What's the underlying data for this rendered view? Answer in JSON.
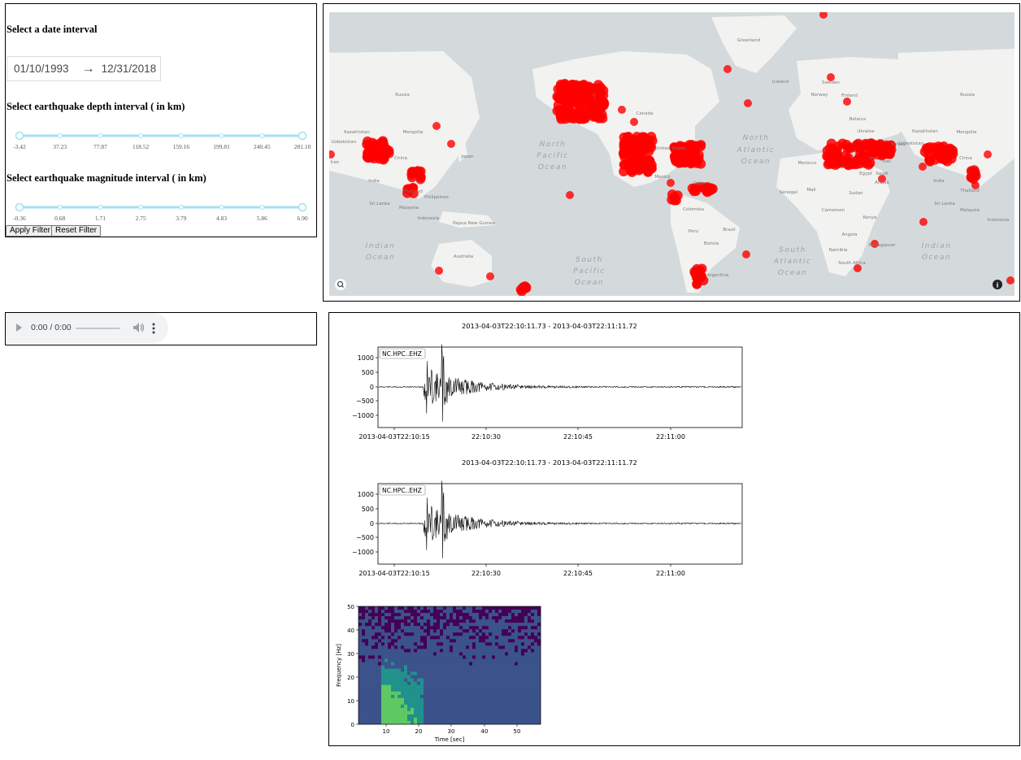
{
  "filters": {
    "date_title": "Select a date interval",
    "date_start": "01/10/1993",
    "date_arrow": "→",
    "date_end": "12/31/2018",
    "depth_title": "Select earthquake depth interval ( in km)",
    "depth_marks": [
      "-3.42",
      "37.23",
      "77.87",
      "118.52",
      "159.16",
      "199.81",
      "240.45",
      "281.10"
    ],
    "depth_range": [
      "-3.42",
      "281.10"
    ],
    "magnitude_title": "Select earthquake magnitude interval ( in km)",
    "magnitude_marks": [
      "-0.36",
      "0.68",
      "1.71",
      "2.75",
      "3.79",
      "4.83",
      "5.86",
      "6.90"
    ],
    "magnitude_range": [
      "-0.36",
      "6.90"
    ],
    "apply_label": "Apply Filter",
    "reset_label": "Reset Filter",
    "slider_color": "#a6dff0"
  },
  "map": {
    "land_color": "#f2f2f0",
    "water_color": "#d4dadc",
    "marker_color": "#ff0000",
    "labels": [
      {
        "text": "Greenland",
        "cls": "land"
      },
      {
        "text": "Russia",
        "cls": "land"
      },
      {
        "text": "Iceland",
        "cls": "land"
      },
      {
        "text": "Sweden",
        "cls": "land"
      },
      {
        "text": "Norway",
        "cls": "land"
      },
      {
        "text": "Finland",
        "cls": "land"
      },
      {
        "text": "Russia",
        "cls": "land"
      },
      {
        "text": "Canada",
        "cls": "land"
      },
      {
        "text": "Kazakhstan",
        "cls": "land"
      },
      {
        "text": "Mongolia",
        "cls": "land"
      },
      {
        "text": "Uzbekistan",
        "cls": "land"
      },
      {
        "text": "China",
        "cls": "land"
      },
      {
        "text": "Japan",
        "cls": "land"
      },
      {
        "text": "Iran",
        "cls": "land"
      },
      {
        "text": "India",
        "cls": "land"
      },
      {
        "text": "Thailand",
        "cls": "land"
      },
      {
        "text": "Philippines",
        "cls": "land"
      },
      {
        "text": "Sri Lanka",
        "cls": "land"
      },
      {
        "text": "Malaysia",
        "cls": "land"
      },
      {
        "text": "Indonesia",
        "cls": "land"
      },
      {
        "text": "Papua New Guinea",
        "cls": "land"
      },
      {
        "text": "Australia",
        "cls": "land"
      },
      {
        "text": "North",
        "cls": "ocean"
      },
      {
        "text": "Pacific",
        "cls": "ocean"
      },
      {
        "text": "Ocean",
        "cls": "ocean"
      },
      {
        "text": "United States",
        "cls": "land"
      },
      {
        "text": "Mexico",
        "cls": "land"
      },
      {
        "text": "Cuba",
        "cls": "land"
      },
      {
        "text": "Colombia",
        "cls": "land"
      },
      {
        "text": "Peru",
        "cls": "land"
      },
      {
        "text": "Brazil",
        "cls": "land"
      },
      {
        "text": "Bolivia",
        "cls": "land"
      },
      {
        "text": "Argentina",
        "cls": "land"
      },
      {
        "text": "South",
        "cls": "ocean"
      },
      {
        "text": "Pacific",
        "cls": "ocean"
      },
      {
        "text": "Ocean",
        "cls": "ocean"
      },
      {
        "text": "North",
        "cls": "ocean"
      },
      {
        "text": "Atlantic",
        "cls": "ocean"
      },
      {
        "text": "Ocean",
        "cls": "ocean"
      },
      {
        "text": "South",
        "cls": "ocean"
      },
      {
        "text": "Atlantic",
        "cls": "ocean"
      },
      {
        "text": "Ocean",
        "cls": "ocean"
      },
      {
        "text": "Belarus",
        "cls": "land"
      },
      {
        "text": "Ukraine",
        "cls": "land"
      },
      {
        "text": "Morocco",
        "cls": "land"
      },
      {
        "text": "Egypt",
        "cls": "land"
      },
      {
        "text": "Saudi",
        "cls": "land"
      },
      {
        "text": "Arabia",
        "cls": "land"
      },
      {
        "text": "Mali",
        "cls": "land"
      },
      {
        "text": "Senegal",
        "cls": "land"
      },
      {
        "text": "Sudan",
        "cls": "land"
      },
      {
        "text": "Cameroon",
        "cls": "land"
      },
      {
        "text": "Kenya",
        "cls": "land"
      },
      {
        "text": "Angola",
        "cls": "land"
      },
      {
        "text": "Namibia",
        "cls": "land"
      },
      {
        "text": "Madagascar",
        "cls": "land"
      },
      {
        "text": "South Africa",
        "cls": "land"
      },
      {
        "text": "Indian",
        "cls": "ocean"
      },
      {
        "text": "Ocean",
        "cls": "ocean"
      },
      {
        "text": "Indian",
        "cls": "ocean"
      },
      {
        "text": "Ocean",
        "cls": "ocean"
      },
      {
        "text": "Kazakhstan",
        "cls": "land"
      },
      {
        "text": "Mongolia",
        "cls": "land"
      },
      {
        "text": "Uzbekistan",
        "cls": "land"
      },
      {
        "text": "China",
        "cls": "land"
      },
      {
        "text": "India",
        "cls": "land"
      },
      {
        "text": "Thailand",
        "cls": "land"
      },
      {
        "text": "Sri Lanka",
        "cls": "land"
      },
      {
        "text": "Malaysia",
        "cls": "land"
      },
      {
        "text": "Indonesia",
        "cls": "land"
      },
      {
        "text": "Iran",
        "cls": "land"
      },
      {
        "text": "Iraq",
        "cls": "land"
      },
      {
        "text": "Turkey",
        "cls": "land"
      }
    ]
  },
  "audio": {
    "time": "0:00 / 0:00",
    "icons": [
      "play-icon",
      "volume-icon",
      "more-icon"
    ]
  },
  "seismogram_1": {
    "title": "2013-04-03T22:10:11.73  -  2013-04-03T22:11:11.72",
    "trace_id": "NC.HPC..EHZ",
    "y_ticks": [
      "1000",
      "500",
      "0",
      "−500",
      "−1000"
    ],
    "x_ticks": [
      "2013-04-03T22:10:15",
      "22:10:30",
      "22:10:45",
      "22:11:00"
    ]
  },
  "seismogram_2": {
    "title": "2013-04-03T22:10:11.73  -  2013-04-03T22:11:11.72",
    "trace_id": "NC.HPC..EHZ",
    "y_ticks": [
      "1000",
      "500",
      "0",
      "−500",
      "−1000"
    ],
    "x_ticks": [
      "2013-04-03T22:10:15",
      "22:10:30",
      "22:10:45",
      "22:11:00"
    ]
  },
  "spectrogram": {
    "ylabel": "Frequency [Hz]",
    "xlabel": "Time [sec]",
    "y_ticks": [
      "50",
      "40",
      "30",
      "20",
      "10",
      "0"
    ],
    "x_ticks": [
      "10",
      "20",
      "30",
      "40",
      "50"
    ],
    "colormap": [
      "#440154",
      "#3b528b",
      "#21918c",
      "#5ec962",
      "#fde725"
    ]
  }
}
